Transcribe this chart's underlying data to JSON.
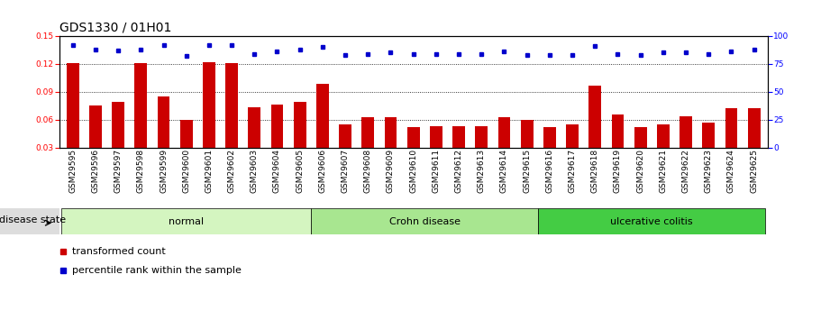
{
  "title": "GDS1330 / 01H01",
  "samples": [
    "GSM29595",
    "GSM29596",
    "GSM29597",
    "GSM29598",
    "GSM29599",
    "GSM29600",
    "GSM29601",
    "GSM29602",
    "GSM29603",
    "GSM29604",
    "GSM29605",
    "GSM29606",
    "GSM29607",
    "GSM29608",
    "GSM29609",
    "GSM29610",
    "GSM29611",
    "GSM29612",
    "GSM29613",
    "GSM29614",
    "GSM29615",
    "GSM29616",
    "GSM29617",
    "GSM29618",
    "GSM29619",
    "GSM29620",
    "GSM29621",
    "GSM29622",
    "GSM29623",
    "GSM29624",
    "GSM29625"
  ],
  "bar_values": [
    0.121,
    0.075,
    0.079,
    0.121,
    0.085,
    0.06,
    0.122,
    0.121,
    0.073,
    0.076,
    0.079,
    0.098,
    0.055,
    0.063,
    0.063,
    0.052,
    0.053,
    0.053,
    0.053,
    0.063,
    0.06,
    0.052,
    0.055,
    0.097,
    0.066,
    0.052,
    0.055,
    0.064,
    0.057,
    0.072,
    0.072
  ],
  "percentile_values": [
    92,
    88,
    87,
    88,
    92,
    82,
    92,
    92,
    84,
    86,
    88,
    90,
    83,
    84,
    85,
    84,
    84,
    84,
    84,
    86,
    83,
    83,
    83,
    91,
    84,
    83,
    85,
    85,
    84,
    86,
    88
  ],
  "groups": [
    {
      "label": "normal",
      "start": 0,
      "end": 10,
      "color": "#d4f5c0"
    },
    {
      "label": "Crohn disease",
      "start": 11,
      "end": 20,
      "color": "#a8e690"
    },
    {
      "label": "ulcerative colitis",
      "start": 21,
      "end": 30,
      "color": "#44cc44"
    }
  ],
  "ylim_left": [
    0.03,
    0.15
  ],
  "ylim_right": [
    0,
    100
  ],
  "yticks_left": [
    0.03,
    0.06,
    0.09,
    0.12,
    0.15
  ],
  "yticks_right": [
    0,
    25,
    50,
    75,
    100
  ],
  "bar_color": "#cc0000",
  "dot_color": "#0000cc",
  "legend_bar_label": "transformed count",
  "legend_dot_label": "percentile rank within the sample",
  "disease_state_label": "disease state",
  "background_color": "#ffffff",
  "title_fontsize": 10,
  "tick_fontsize": 6.5,
  "label_fontsize": 8
}
